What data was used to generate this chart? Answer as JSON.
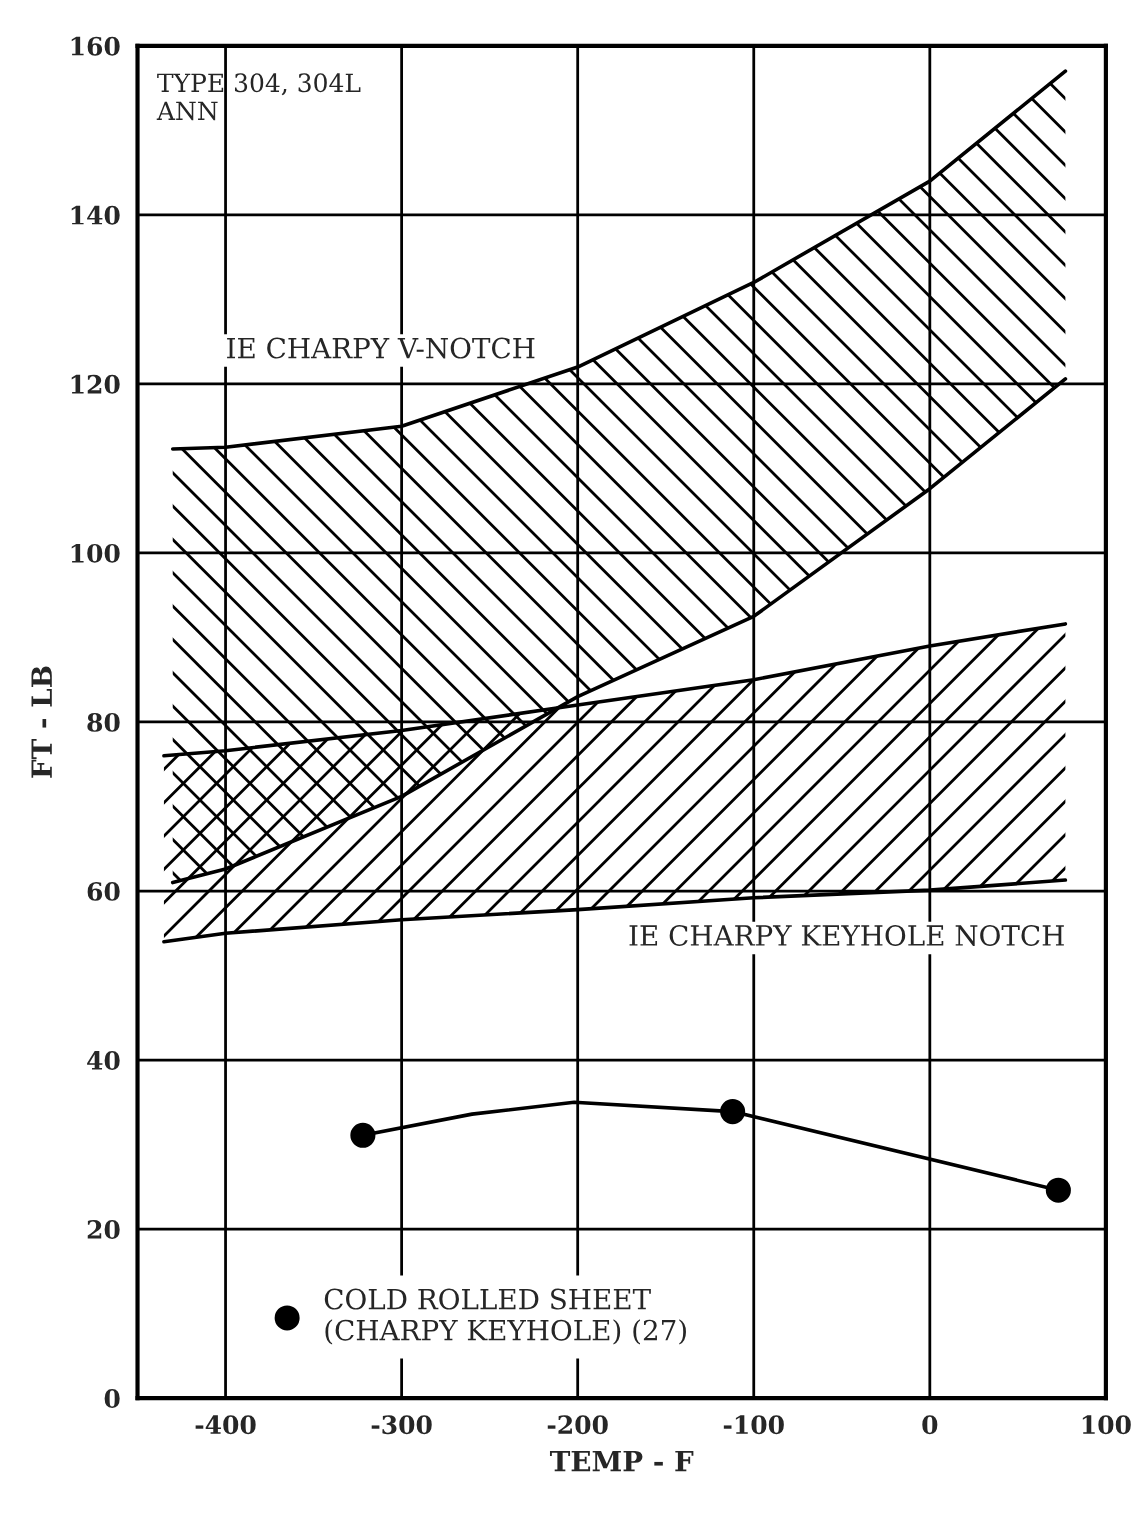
{
  "chart_data": {
    "type": "line",
    "xlabel": "TEMP - F",
    "ylabel": "FT - LB",
    "xlim": [
      -450,
      100
    ],
    "xticks": [
      -400,
      -300,
      -200,
      -100,
      0,
      100
    ],
    "ylim": [
      0,
      160
    ],
    "yticks": [
      0,
      20,
      40,
      60,
      80,
      100,
      120,
      140,
      160
    ],
    "grid": true,
    "legend": "bottom left",
    "marker": "none",
    "annotations": [
      "TYPE 304, 304L\nANN"
    ],
    "series": [
      {
        "name": "IE CHARPY V-NOTCH",
        "color": "#000000",
        "x": [
          -430,
          -400,
          -300,
          -200,
          -100,
          0,
          77
        ],
        "values": [
          112.3,
          112.5,
          115,
          122,
          132,
          144,
          157
        ]
      },
      {
        "color": "#000000",
        "x": [
          -430,
          -400,
          -300,
          -200,
          -100,
          0,
          77
        ],
        "values": [
          61,
          62.6,
          71.2,
          83,
          92.5,
          107.6,
          120.6
        ]
      },
      {
        "name": "IE CHARPY KEYHOLE NOTCH",
        "color": "#000000",
        "x": [
          -435,
          -400,
          -300,
          -200,
          -100,
          0,
          77
        ],
        "values": [
          54,
          55,
          56.6,
          57.8,
          59.2,
          60.1,
          61.3
        ]
      },
      {
        "color": "#000000",
        "x": [
          -435,
          -400,
          -300,
          -200,
          -100,
          0,
          77
        ],
        "values": [
          76,
          76.6,
          79,
          82,
          85,
          89,
          91.6
        ]
      },
      {
        "color": "#000000",
        "x": [
          -322,
          -260,
          -202,
          -112,
          73
        ],
        "values": [
          31.1,
          33.6,
          35,
          33.9,
          24.6
        ]
      },
      {
        "name": "COLD ROLLED SHEET\n(CHARPY KEYHOLE) (27)",
        "type": "scatter",
        "color": "#000000",
        "marker": "circle",
        "x": [
          -322,
          -112,
          73
        ],
        "values": [
          31.1,
          33.9,
          24.6
        ]
      }
    ]
  }
}
